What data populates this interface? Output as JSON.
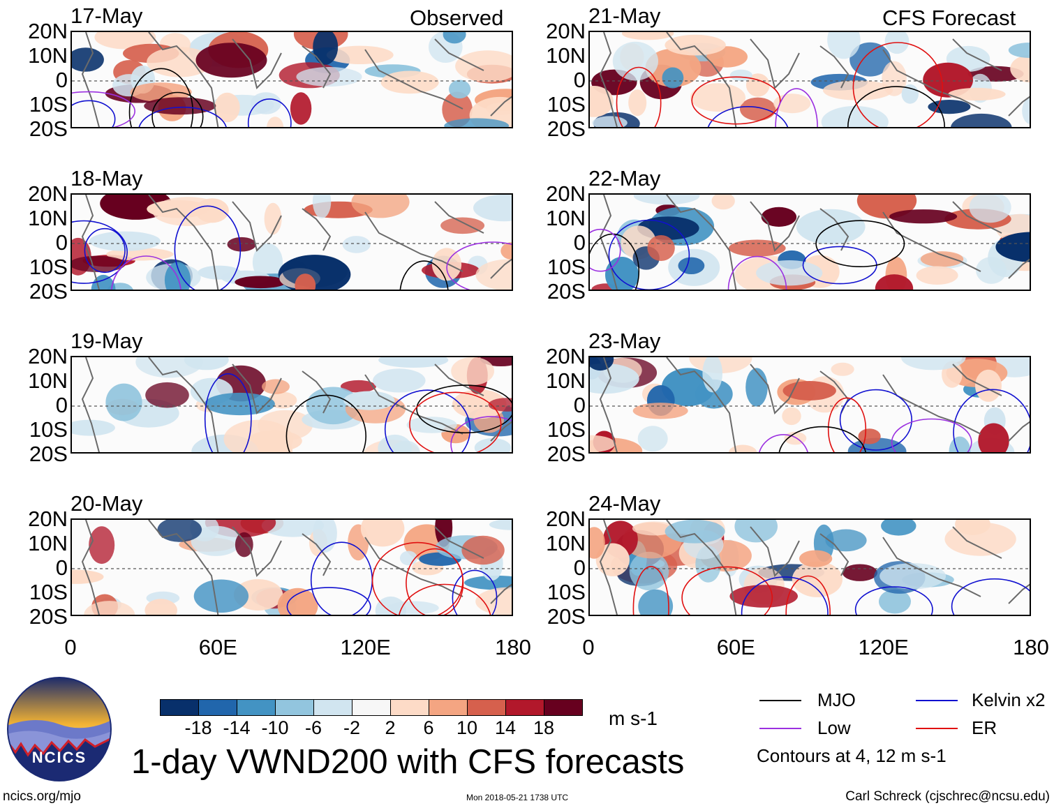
{
  "figure": {
    "title": "1-day VWND200 with CFS forecasts",
    "left_corner_label": "Observed",
    "right_corner_label": "CFS Forecast",
    "colorbar_units": "m s-1",
    "contour_note": "Contours at 4, 12 m s-1",
    "footer_left": "ncics.org/mjo",
    "footer_center": "Mon 2018-05-21 1738 UTC",
    "footer_right": "Carl Schreck (cjschrec@ncsu.edu)",
    "logo_text": "NCICS"
  },
  "panels": [
    {
      "date": "17-May",
      "kind": "observed"
    },
    {
      "date": "18-May",
      "kind": "observed"
    },
    {
      "date": "19-May",
      "kind": "observed"
    },
    {
      "date": "20-May",
      "kind": "observed"
    },
    {
      "date": "21-May",
      "kind": "forecast"
    },
    {
      "date": "22-May",
      "kind": "forecast"
    },
    {
      "date": "23-May",
      "kind": "forecast"
    },
    {
      "date": "24-May",
      "kind": "forecast"
    }
  ],
  "lat_labels": [
    "20N",
    "10N",
    "0",
    "10S",
    "20S"
  ],
  "lon_labels": [
    "0",
    "60E",
    "120E",
    "180"
  ],
  "colorbar": {
    "ticks": [
      "-18",
      "-14",
      "-10",
      "-6",
      "-2",
      "2",
      "6",
      "10",
      "14",
      "18"
    ],
    "colors": [
      "#08306b",
      "#2166ac",
      "#4393c3",
      "#92c5de",
      "#d1e5f0",
      "#f7f7f7",
      "#fddbc7",
      "#f4a582",
      "#d6604d",
      "#b2182b",
      "#67001f"
    ]
  },
  "legend": {
    "mjo": {
      "label": "MJO",
      "color": "#000000"
    },
    "kelvin": {
      "label": "Kelvin x2",
      "color": "#1010d0"
    },
    "low": {
      "label": "Low",
      "color": "#9b30e0"
    },
    "er": {
      "label": "ER",
      "color": "#e01010"
    }
  }
}
